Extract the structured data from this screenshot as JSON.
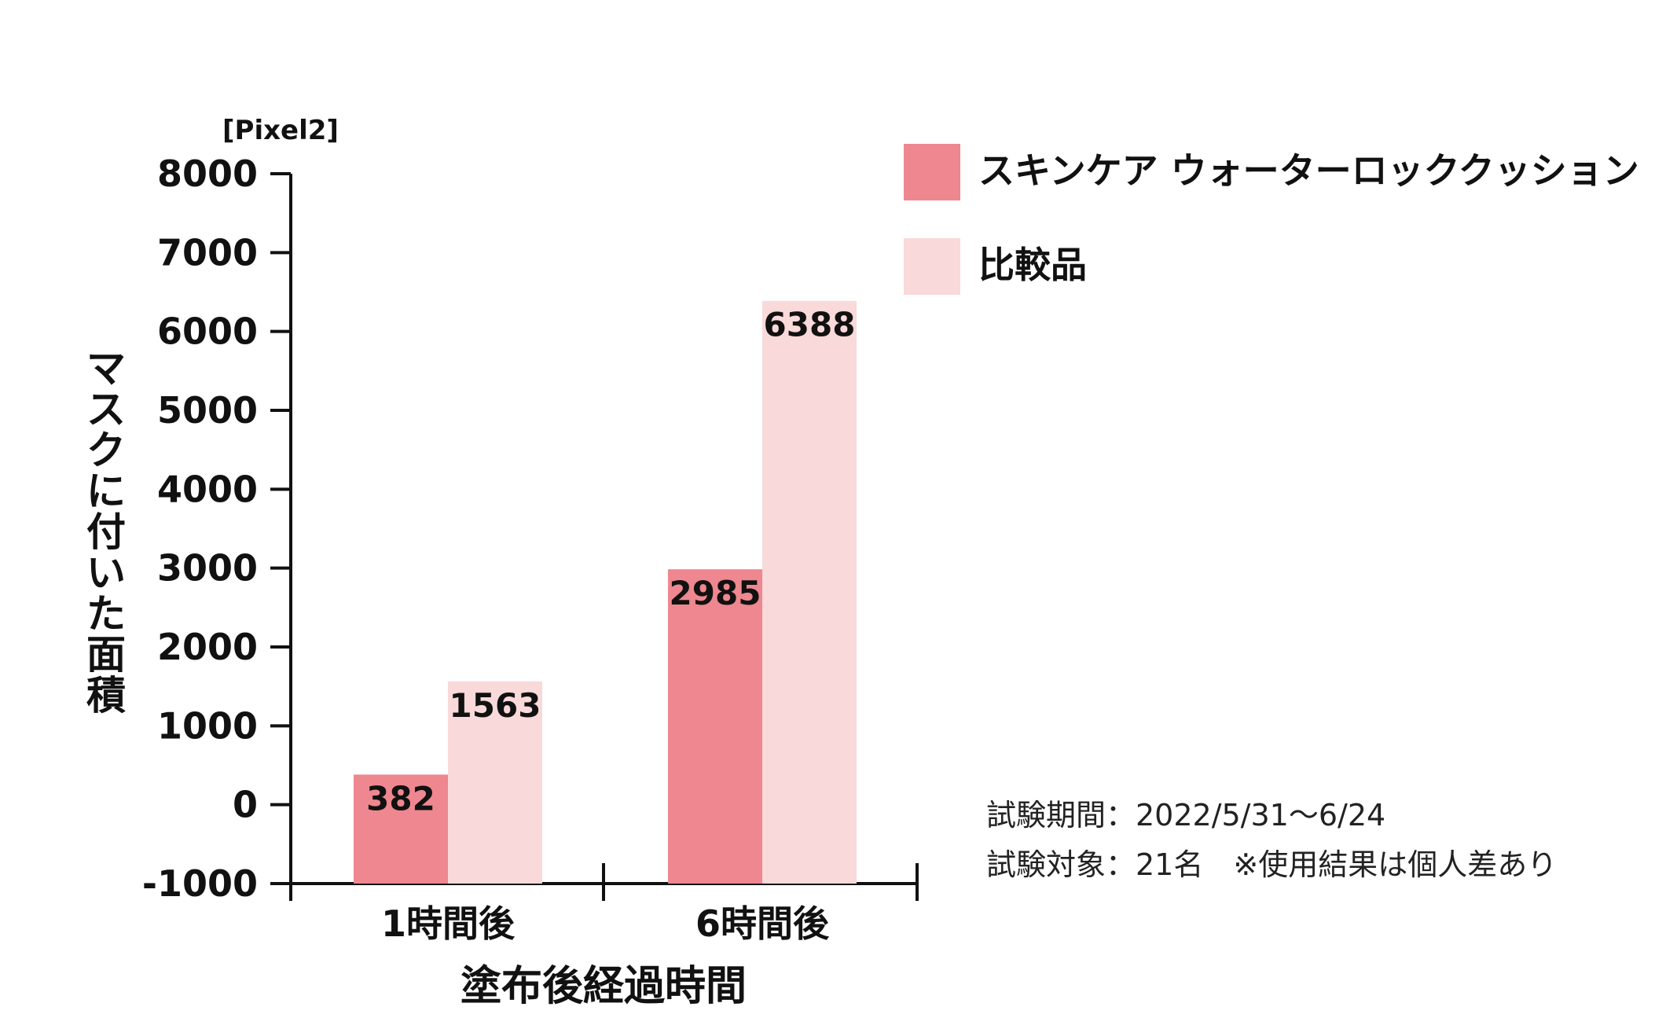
{
  "colors": {
    "series_main": "#ee878f",
    "series_compare": "#f9d9d9",
    "axis": "#111111"
  },
  "chart_data": {
    "type": "bar",
    "title": "",
    "unit_label": "[Pixel2]",
    "xlabel": "塗布後経過時間",
    "ylabel": "マスクに付いた面積",
    "categories": [
      "1時間後",
      "6時間後"
    ],
    "ylim": [
      -1000,
      8000
    ],
    "yticks": [
      -1000,
      0,
      1000,
      2000,
      3000,
      4000,
      5000,
      6000,
      7000,
      8000
    ],
    "baseline": -1000,
    "grid": false,
    "legend_position": "top-right",
    "series": [
      {
        "name": "スキンケア ウォーターロッククッション",
        "values": [
          382,
          2985
        ],
        "labels": [
          "382",
          "2985"
        ],
        "color": "#ee878f"
      },
      {
        "name": "比較品",
        "values": [
          1563,
          6388
        ],
        "labels": [
          "1563",
          "6388"
        ],
        "color": "#f9d9d9"
      }
    ]
  },
  "notes": {
    "period": "試験期間：2022/5/31〜6/24",
    "subjects": "試験対象：21名　※使用結果は個人差あり"
  }
}
